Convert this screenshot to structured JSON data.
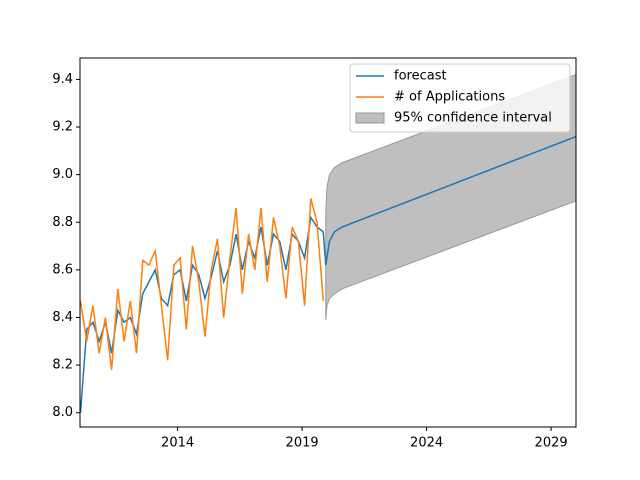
{
  "chart_data": {
    "type": "line",
    "xlim": [
      2010.08,
      2030.0
    ],
    "ylim": [
      7.94,
      9.49
    ],
    "xticks": [
      2014,
      2019,
      2024,
      2029
    ],
    "yticks": [
      {
        "value": 8.0,
        "label": "8.0"
      },
      8.2,
      8.4,
      8.6,
      8.8,
      {
        "value": 9.0,
        "label": "9.0"
      },
      9.2,
      9.4
    ],
    "legend": "upper right",
    "band": {
      "name": "95% confidence interval",
      "color": "#bfbfbf",
      "x": [
        2019.95,
        2020.0,
        2020.1,
        2020.3,
        2020.6,
        2030.0
      ],
      "lower": [
        8.39,
        8.45,
        8.48,
        8.5,
        8.52,
        8.89
      ],
      "upper": [
        8.84,
        8.95,
        9.0,
        9.03,
        9.05,
        9.42
      ]
    },
    "series": [
      {
        "name": "forecast",
        "color": "#1f77b4",
        "x": [
          2010.1,
          2010.35,
          2010.6,
          2010.85,
          2011.1,
          2011.35,
          2011.6,
          2011.85,
          2012.1,
          2012.35,
          2012.6,
          2012.85,
          2013.1,
          2013.35,
          2013.6,
          2013.85,
          2014.1,
          2014.35,
          2014.6,
          2014.85,
          2015.1,
          2015.35,
          2015.6,
          2015.85,
          2016.1,
          2016.35,
          2016.6,
          2016.85,
          2017.1,
          2017.35,
          2017.6,
          2017.85,
          2018.1,
          2018.35,
          2018.6,
          2018.85,
          2019.1,
          2019.35,
          2019.6,
          2019.85,
          2019.95,
          2020.1,
          2020.3,
          2020.6,
          2030.0
        ],
        "values": [
          8.0,
          8.35,
          8.38,
          8.3,
          8.38,
          8.25,
          8.43,
          8.38,
          8.4,
          8.33,
          8.5,
          8.55,
          8.6,
          8.48,
          8.45,
          8.58,
          8.6,
          8.47,
          8.62,
          8.58,
          8.48,
          8.57,
          8.68,
          8.55,
          8.62,
          8.75,
          8.6,
          8.72,
          8.65,
          8.78,
          8.62,
          8.75,
          8.72,
          8.6,
          8.75,
          8.72,
          8.65,
          8.82,
          8.78,
          8.76,
          8.62,
          8.72,
          8.76,
          8.78,
          9.16
        ]
      },
      {
        "name": "# of Applications",
        "color": "#ff7f0e",
        "x": [
          2010.1,
          2010.35,
          2010.6,
          2010.85,
          2011.1,
          2011.35,
          2011.6,
          2011.85,
          2012.1,
          2012.35,
          2012.6,
          2012.85,
          2013.1,
          2013.35,
          2013.6,
          2013.85,
          2014.1,
          2014.35,
          2014.6,
          2014.85,
          2015.1,
          2015.35,
          2015.6,
          2015.85,
          2016.1,
          2016.35,
          2016.6,
          2016.85,
          2017.1,
          2017.35,
          2017.6,
          2017.85,
          2018.1,
          2018.35,
          2018.6,
          2018.85,
          2019.1,
          2019.35,
          2019.6,
          2019.85
        ],
        "values": [
          8.47,
          8.3,
          8.45,
          8.25,
          8.4,
          8.18,
          8.52,
          8.3,
          8.47,
          8.25,
          8.64,
          8.62,
          8.68,
          8.45,
          8.22,
          8.62,
          8.65,
          8.35,
          8.7,
          8.55,
          8.32,
          8.6,
          8.73,
          8.4,
          8.65,
          8.86,
          8.5,
          8.75,
          8.6,
          8.86,
          8.55,
          8.82,
          8.7,
          8.48,
          8.78,
          8.72,
          8.45,
          8.9,
          8.8,
          8.47
        ]
      }
    ]
  }
}
